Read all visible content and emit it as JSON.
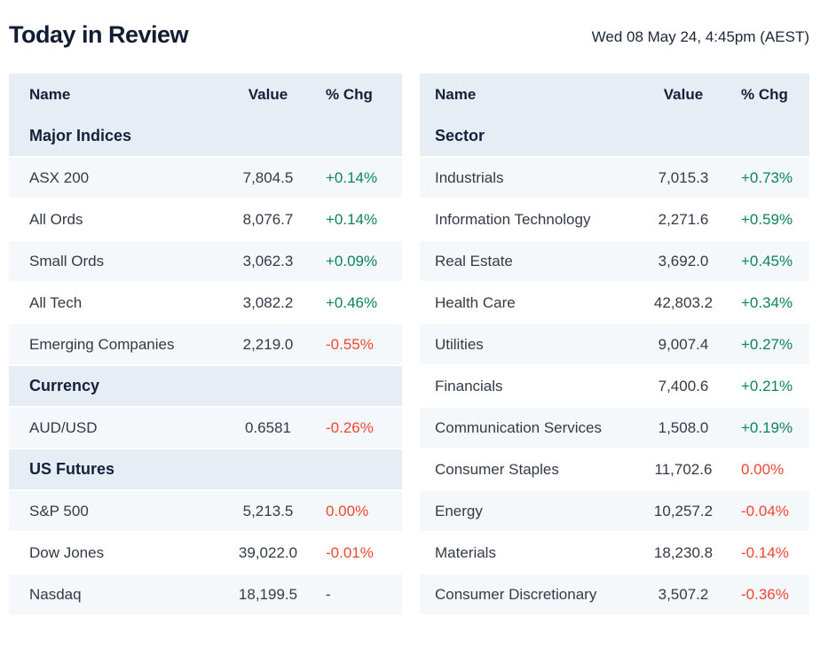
{
  "header": {
    "title": "Today in Review",
    "date": "Wed 08 May 24, 4:45pm (AEST)"
  },
  "colors": {
    "up": "#0d8457",
    "down": "#f04632",
    "neutral": "#323b47",
    "section_bg": "#e7edf5",
    "alt_row_bg": "#f4f8fb"
  },
  "tables": {
    "left": {
      "columns": {
        "name": "Name",
        "value": "Value",
        "chg": "% Chg"
      },
      "rows": [
        {
          "type": "section",
          "label": "Major Indices"
        },
        {
          "type": "data",
          "name": "ASX 200",
          "value": "7,804.5",
          "chg": "+0.14%",
          "dir": "up"
        },
        {
          "type": "data",
          "name": "All Ords",
          "value": "8,076.7",
          "chg": "+0.14%",
          "dir": "up"
        },
        {
          "type": "data",
          "name": "Small Ords",
          "value": "3,062.3",
          "chg": "+0.09%",
          "dir": "up"
        },
        {
          "type": "data",
          "name": "All Tech",
          "value": "3,082.2",
          "chg": "+0.46%",
          "dir": "up"
        },
        {
          "type": "data",
          "name": "Emerging Companies",
          "value": "2,219.0",
          "chg": "-0.55%",
          "dir": "down"
        },
        {
          "type": "section",
          "label": "Currency"
        },
        {
          "type": "data",
          "name": "AUD/USD",
          "value": "0.6581",
          "chg": "-0.26%",
          "dir": "down"
        },
        {
          "type": "section",
          "label": "US Futures"
        },
        {
          "type": "data",
          "name": "S&P 500",
          "value": "5,213.5",
          "chg": "0.00%",
          "dir": "down"
        },
        {
          "type": "data",
          "name": "Dow Jones",
          "value": "39,022.0",
          "chg": "-0.01%",
          "dir": "down"
        },
        {
          "type": "data",
          "name": "Nasdaq",
          "value": "18,199.5",
          "chg": "-",
          "dir": "neutral"
        }
      ]
    },
    "right": {
      "columns": {
        "name": "Name",
        "value": "Value",
        "chg": "% Chg"
      },
      "rows": [
        {
          "type": "section",
          "label": "Sector"
        },
        {
          "type": "data",
          "name": "Industrials",
          "value": "7,015.3",
          "chg": "+0.73%",
          "dir": "up"
        },
        {
          "type": "data",
          "name": "Information Technology",
          "value": "2,271.6",
          "chg": "+0.59%",
          "dir": "up"
        },
        {
          "type": "data",
          "name": "Real Estate",
          "value": "3,692.0",
          "chg": "+0.45%",
          "dir": "up"
        },
        {
          "type": "data",
          "name": "Health Care",
          "value": "42,803.2",
          "chg": "+0.34%",
          "dir": "up"
        },
        {
          "type": "data",
          "name": "Utilities",
          "value": "9,007.4",
          "chg": "+0.27%",
          "dir": "up"
        },
        {
          "type": "data",
          "name": "Financials",
          "value": "7,400.6",
          "chg": "+0.21%",
          "dir": "up"
        },
        {
          "type": "data",
          "name": "Communication Services",
          "value": "1,508.0",
          "chg": "+0.19%",
          "dir": "up"
        },
        {
          "type": "data",
          "name": "Consumer Staples",
          "value": "11,702.6",
          "chg": "0.00%",
          "dir": "down"
        },
        {
          "type": "data",
          "name": "Energy",
          "value": "10,257.2",
          "chg": "-0.04%",
          "dir": "down"
        },
        {
          "type": "data",
          "name": "Materials",
          "value": "18,230.8",
          "chg": "-0.14%",
          "dir": "down"
        },
        {
          "type": "data",
          "name": "Consumer Discretionary",
          "value": "3,507.2",
          "chg": "-0.36%",
          "dir": "down"
        }
      ]
    }
  }
}
